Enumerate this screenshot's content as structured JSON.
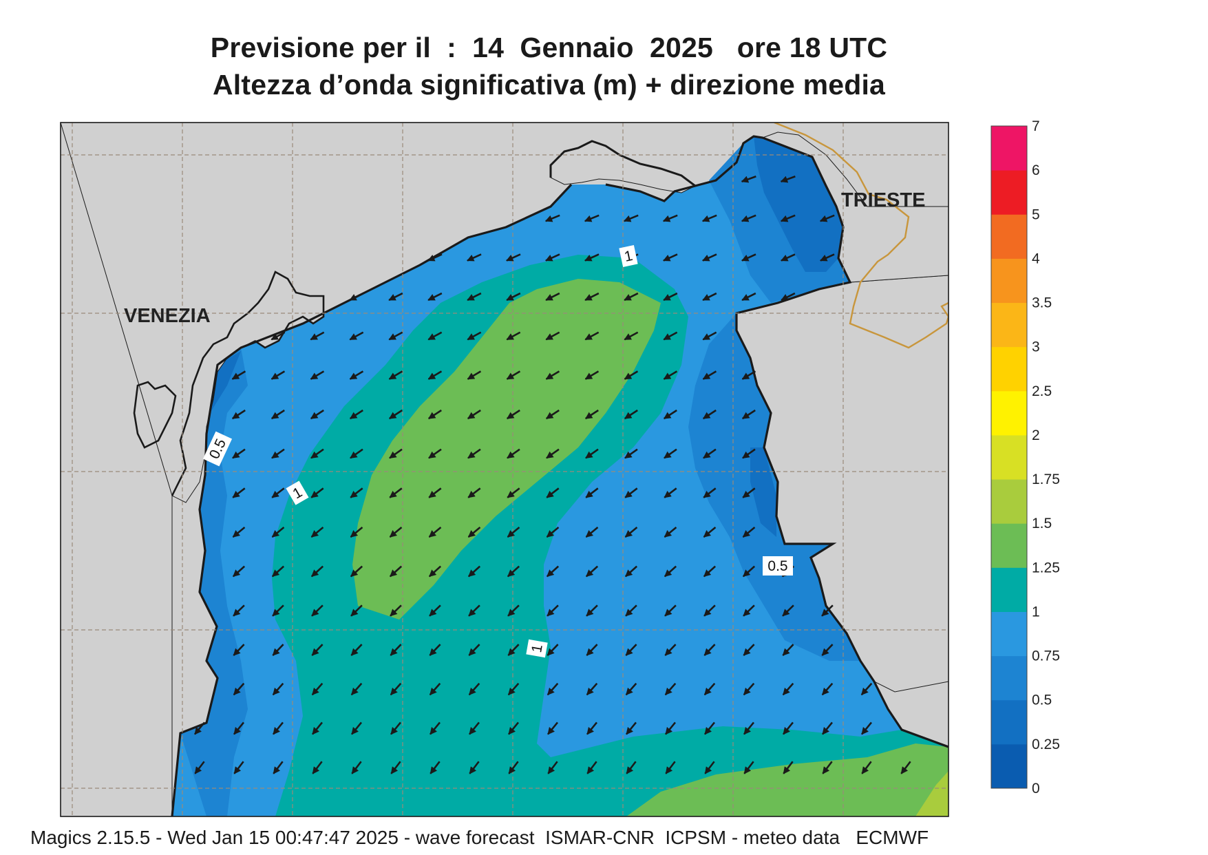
{
  "title": {
    "line1": "Previsione per il  :  14  Gennaio  2025   ore 18 UTC",
    "line2": "Altezza d’onda significativa (m) + direzione media"
  },
  "cities": {
    "venezia": "VENEZIA",
    "trieste": "TRIESTE"
  },
  "contour_labels": [
    "1",
    "0.5",
    "1",
    "0.5",
    "1"
  ],
  "colorbar": {
    "labels": [
      "0",
      "0.25",
      "0.5",
      "0.75",
      "1",
      "1.25",
      "1.5",
      "1.75",
      "2",
      "2.5",
      "3",
      "3.5",
      "4",
      "5",
      "6",
      "7"
    ],
    "colors": [
      "#0a5cb0",
      "#1270c2",
      "#1d84d2",
      "#2a98e0",
      "#00aba5",
      "#6cbd55",
      "#a9cc3d",
      "#d8e024",
      "#fff200",
      "#ffd200",
      "#fbb617",
      "#f7941d",
      "#f26b21",
      "#ed1c24",
      "#ee1565"
    ]
  },
  "colors": {
    "land": "#d0d0d0",
    "coast": "#1a1a1a",
    "grid": "#9a8a7a",
    "border": "#c8963c",
    "arrow": "#1a1a1a"
  },
  "footer": "Magics 2.15.5 - Wed Jan 15 00:47:47 2025 - wave forecast  ISMAR-CNR  ICPSM - meteo data   ECMWF"
}
